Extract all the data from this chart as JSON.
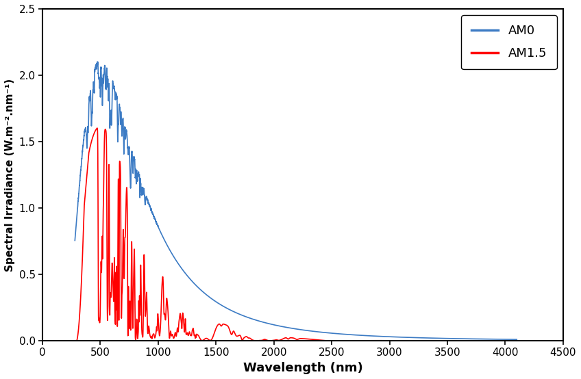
{
  "title": "",
  "xlabel": "Wavelength (nm)",
  "ylabel": "Spectral Irradiance (W.m⁻².nm⁻¹)",
  "xlim": [
    0,
    4500
  ],
  "ylim": [
    0,
    2.5
  ],
  "xticks": [
    0,
    500,
    1000,
    1500,
    2000,
    2500,
    3000,
    3500,
    4000,
    4500
  ],
  "yticks": [
    0.0,
    0.5,
    1.0,
    1.5,
    2.0,
    2.5
  ],
  "am0_color": "#3C7BC4",
  "am15_color": "#FF0000",
  "legend_labels": [
    "AM0",
    "AM1.5"
  ],
  "linewidth": 1.2,
  "legend_fontsize": 13,
  "tick_labelsize": 11,
  "xlabel_fontsize": 13,
  "ylabel_fontsize": 11
}
